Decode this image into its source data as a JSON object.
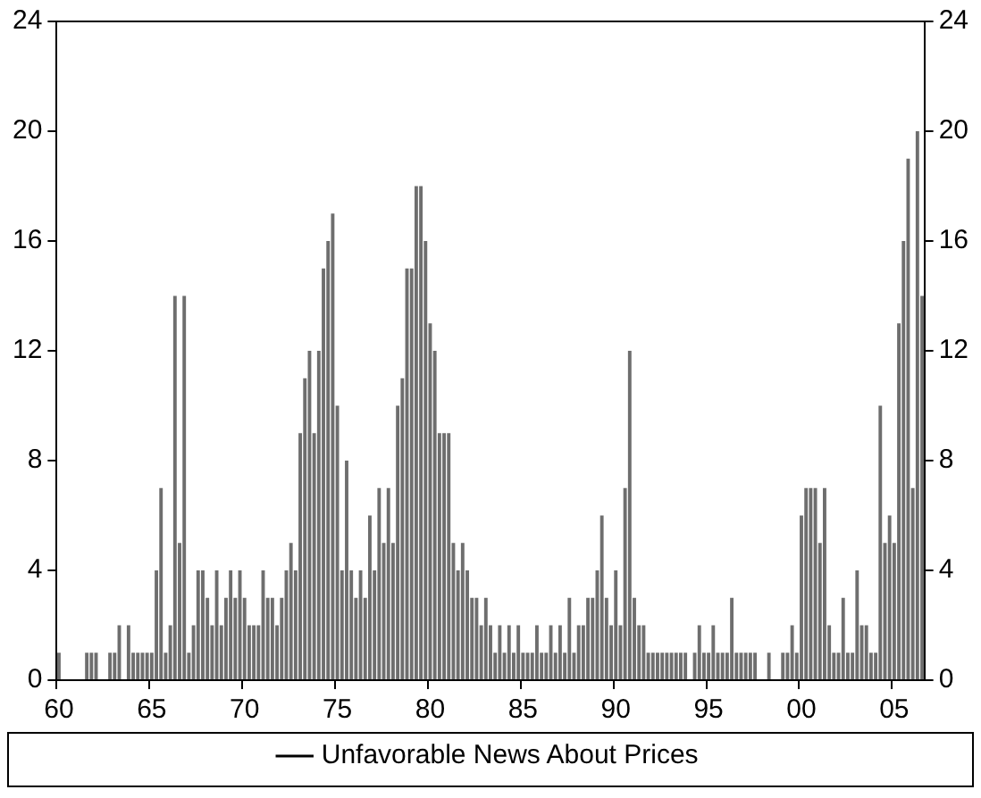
{
  "chart_data": {
    "type": "bar",
    "categories": [
      "60",
      null,
      null,
      null,
      null,
      null,
      null,
      null,
      null,
      null,
      null,
      null,
      null,
      null,
      null,
      null,
      null,
      null,
      null,
      null,
      "65",
      null,
      null,
      null,
      null,
      null,
      null,
      null,
      null,
      null,
      null,
      null,
      null,
      null,
      null,
      null,
      null,
      null,
      null,
      null,
      "70",
      null,
      null,
      null,
      null,
      null,
      null,
      null,
      null,
      null,
      null,
      null,
      null,
      null,
      null,
      null,
      null,
      null,
      null,
      null,
      "75",
      null,
      null,
      null,
      null,
      null,
      null,
      null,
      null,
      null,
      null,
      null,
      null,
      null,
      null,
      null,
      null,
      null,
      null,
      null,
      "80",
      null,
      null,
      null,
      null,
      null,
      null,
      null,
      null,
      null,
      null,
      null,
      null,
      null,
      null,
      null,
      null,
      null,
      null,
      null,
      "85",
      null,
      null,
      null,
      null,
      null,
      null,
      null,
      null,
      null,
      null,
      null,
      null,
      null,
      null,
      null,
      null,
      null,
      null,
      null,
      "90",
      null,
      null,
      null,
      null,
      null,
      null,
      null,
      null,
      null,
      null,
      null,
      null,
      null,
      null,
      null,
      null,
      null,
      null,
      null,
      "95",
      null,
      null,
      null,
      null,
      null,
      null,
      null,
      null,
      null,
      null,
      null,
      null,
      null,
      null,
      null,
      null,
      null,
      null,
      null,
      "00",
      null,
      null,
      null,
      null,
      null,
      null,
      null,
      null,
      null,
      null,
      null,
      null,
      null,
      null,
      null,
      null,
      null,
      null,
      null,
      "05",
      null,
      null,
      null,
      null,
      null,
      null
    ],
    "series": [
      {
        "name": "Unfavorable News About Prices",
        "color": "#6e6e6e",
        "values": [
          1,
          0,
          0,
          0,
          0,
          0,
          1,
          1,
          1,
          0,
          0,
          1,
          1,
          2,
          0,
          2,
          1,
          1,
          1,
          1,
          1,
          4,
          7,
          1,
          2,
          14,
          5,
          14,
          1,
          2,
          4,
          4,
          3,
          2,
          4,
          2,
          3,
          4,
          3,
          4,
          3,
          2,
          2,
          2,
          4,
          3,
          3,
          2,
          3,
          4,
          5,
          4,
          9,
          11,
          12,
          9,
          12,
          15,
          16,
          17,
          10,
          4,
          8,
          4,
          3,
          4,
          3,
          6,
          4,
          7,
          5,
          7,
          5,
          10,
          11,
          15,
          15,
          18,
          18,
          16,
          13,
          12,
          9,
          9,
          9,
          5,
          4,
          5,
          4,
          3,
          3,
          2,
          3,
          2,
          1,
          2,
          1,
          2,
          1,
          2,
          1,
          1,
          1,
          2,
          1,
          1,
          2,
          1,
          2,
          1,
          3,
          1,
          2,
          2,
          3,
          3,
          4,
          6,
          3,
          2,
          4,
          2,
          7,
          12,
          3,
          2,
          2,
          1,
          1,
          1,
          1,
          1,
          1,
          1,
          1,
          1,
          0,
          1,
          2,
          1,
          1,
          2,
          1,
          1,
          1,
          3,
          1,
          1,
          1,
          1,
          1,
          0,
          0,
          1,
          0,
          0,
          1,
          1,
          2,
          1,
          6,
          7,
          7,
          7,
          5,
          7,
          2,
          1,
          1,
          3,
          1,
          1,
          4,
          2,
          2,
          1,
          1,
          10,
          5,
          6,
          5,
          13,
          16,
          19,
          7,
          20,
          14
        ]
      }
    ],
    "ylim": [
      0,
      24
    ],
    "yticks": [
      0,
      4,
      8,
      12,
      16,
      20,
      24
    ],
    "y2lim": [
      0,
      24
    ],
    "y2ticks": [
      0,
      4,
      8,
      12,
      16,
      20,
      24
    ],
    "grid": false,
    "legend": "bottom"
  }
}
